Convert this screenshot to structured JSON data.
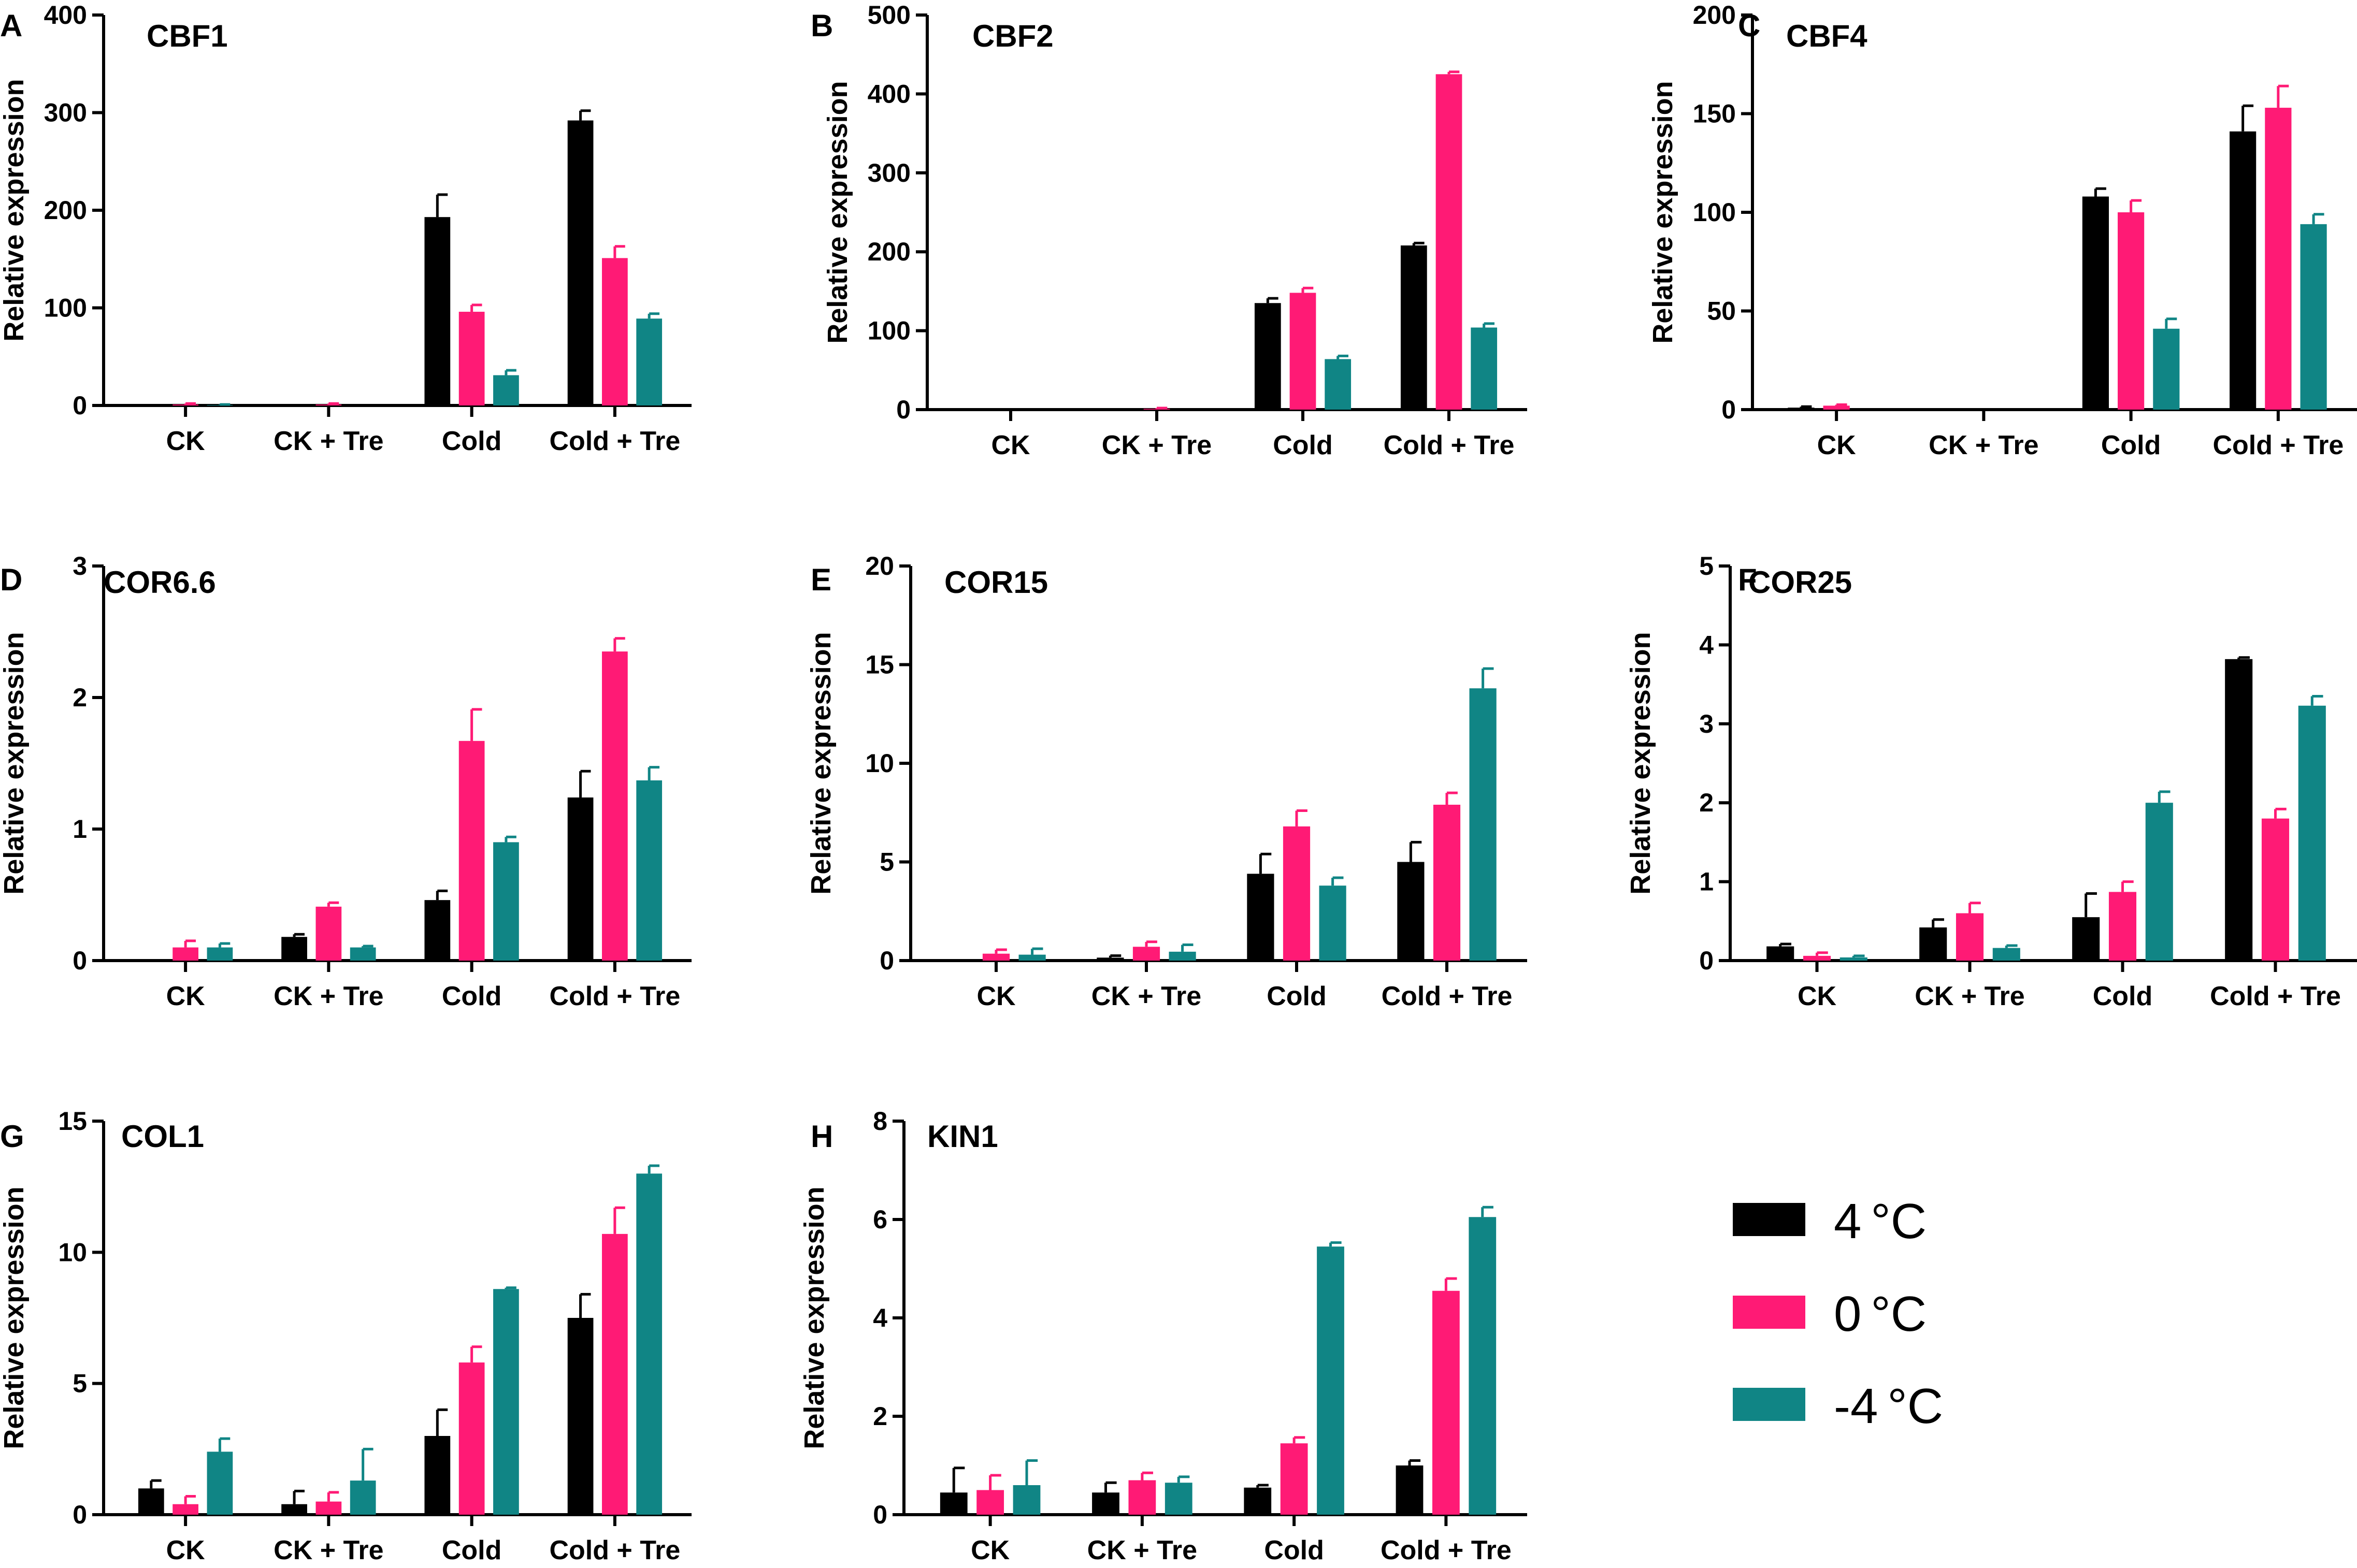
{
  "figure": {
    "series": [
      {
        "name": "4 °C",
        "label_value": "4",
        "label_unit": "°C",
        "color": "#000000"
      },
      {
        "name": "0 °C",
        "label_value": "0",
        "label_unit": "°C",
        "color": "#ff1a75"
      },
      {
        "name": "-4 °C",
        "label_value": "-4",
        "label_unit": "°C",
        "color": "#108585"
      }
    ],
    "categories": [
      "CK",
      "CK + Tre",
      "Cold",
      "Cold + Tre"
    ]
  },
  "chart_data": [
    {
      "panel": "A",
      "type": "bar",
      "title": "CBF1",
      "ylabel": "Relative expression",
      "xlabel": "",
      "categories": [
        "CK",
        "CK + Tre",
        "Cold",
        "Cold + Tre"
      ],
      "ylim": [
        0,
        400
      ],
      "yticks": [
        0,
        100,
        200,
        300,
        400
      ],
      "series": [
        {
          "name": "4 °C",
          "values": [
            0,
            0,
            193,
            292
          ],
          "errors": [
            0,
            0,
            23,
            10
          ]
        },
        {
          "name": "0 °C",
          "values": [
            1,
            1,
            96,
            151
          ],
          "errors": [
            1,
            1,
            7,
            12
          ]
        },
        {
          "name": "-4 °C",
          "values": [
            0.5,
            0,
            31,
            89
          ],
          "errors": [
            0.5,
            0,
            5,
            5
          ]
        }
      ]
    },
    {
      "panel": "B",
      "type": "bar",
      "title": "CBF2",
      "ylabel": "Relative expression",
      "xlabel": "",
      "categories": [
        "CK",
        "CK + Tre",
        "Cold",
        "Cold + Tre"
      ],
      "ylim": [
        0,
        500
      ],
      "yticks": [
        0,
        100,
        200,
        300,
        400,
        500
      ],
      "series": [
        {
          "name": "4 °C",
          "values": [
            0,
            0,
            135,
            208
          ],
          "errors": [
            0,
            0,
            6,
            3
          ]
        },
        {
          "name": "0 °C",
          "values": [
            0,
            1,
            148,
            425
          ],
          "errors": [
            0,
            1,
            6,
            3
          ]
        },
        {
          "name": "-4 °C",
          "values": [
            0,
            0,
            64,
            104
          ],
          "errors": [
            0,
            0,
            4,
            5
          ]
        }
      ]
    },
    {
      "panel": "C",
      "type": "bar",
      "title": "CBF4",
      "ylabel": "Relative expression",
      "xlabel": "",
      "categories": [
        "CK",
        "CK + Tre",
        "Cold",
        "Cold + Tre"
      ],
      "ylim": [
        0,
        200
      ],
      "yticks": [
        0,
        50,
        100,
        150,
        200
      ],
      "series": [
        {
          "name": "4 °C",
          "values": [
            1,
            0,
            108,
            141
          ],
          "errors": [
            0.5,
            0,
            4,
            13
          ]
        },
        {
          "name": "0 °C",
          "values": [
            2,
            0,
            100,
            153
          ],
          "errors": [
            0.5,
            0,
            6,
            11
          ]
        },
        {
          "name": "-4 °C",
          "values": [
            0,
            0,
            41,
            94
          ],
          "errors": [
            0,
            0,
            5,
            5
          ]
        }
      ]
    },
    {
      "panel": "D",
      "type": "bar",
      "title": "COR6.6",
      "ylabel": "Relative expression",
      "xlabel": "",
      "categories": [
        "CK",
        "CK + Tre",
        "Cold",
        "Cold + Tre"
      ],
      "ylim": [
        0,
        3
      ],
      "yticks": [
        0,
        1,
        2,
        3
      ],
      "series": [
        {
          "name": "4 °C",
          "values": [
            0,
            0.18,
            0.46,
            1.24
          ],
          "errors": [
            0,
            0.02,
            0.07,
            0.2
          ]
        },
        {
          "name": "0 °C",
          "values": [
            0.1,
            0.41,
            1.67,
            2.35
          ],
          "errors": [
            0.05,
            0.03,
            0.24,
            0.1
          ]
        },
        {
          "name": "-4 °C",
          "values": [
            0.1,
            0.1,
            0.9,
            1.37
          ],
          "errors": [
            0.03,
            0.01,
            0.04,
            0.1
          ]
        }
      ]
    },
    {
      "panel": "E",
      "type": "bar",
      "title": "COR15",
      "ylabel": "Relative expression",
      "xlabel": "",
      "categories": [
        "CK",
        "CK + Tre",
        "Cold",
        "Cold + Tre"
      ],
      "ylim": [
        0,
        20
      ],
      "yticks": [
        0,
        5,
        10,
        15,
        20
      ],
      "series": [
        {
          "name": "4 °C",
          "values": [
            0,
            0.15,
            4.4,
            5.0
          ],
          "errors": [
            0,
            0.1,
            1.0,
            1.0
          ]
        },
        {
          "name": "0 °C",
          "values": [
            0.35,
            0.7,
            6.8,
            7.9
          ],
          "errors": [
            0.2,
            0.25,
            0.8,
            0.6
          ]
        },
        {
          "name": "-4 °C",
          "values": [
            0.3,
            0.45,
            3.8,
            13.8
          ],
          "errors": [
            0.3,
            0.35,
            0.4,
            1.0
          ]
        }
      ]
    },
    {
      "panel": "F",
      "type": "bar",
      "title": "COR25",
      "ylabel": "Relative expression",
      "xlabel": "",
      "categories": [
        "CK",
        "CK + Tre",
        "Cold",
        "Cold + Tre"
      ],
      "ylim": [
        0,
        5
      ],
      "yticks": [
        0,
        1,
        2,
        3,
        4,
        5
      ],
      "series": [
        {
          "name": "4 °C",
          "values": [
            0.18,
            0.42,
            0.55,
            3.82
          ],
          "errors": [
            0.03,
            0.1,
            0.3,
            0.02
          ]
        },
        {
          "name": "0 °C",
          "values": [
            0.06,
            0.6,
            0.87,
            1.8
          ],
          "errors": [
            0.04,
            0.13,
            0.13,
            0.12
          ]
        },
        {
          "name": "-4 °C",
          "values": [
            0.04,
            0.16,
            2.0,
            3.23
          ],
          "errors": [
            0.02,
            0.03,
            0.14,
            0.12
          ]
        }
      ]
    },
    {
      "panel": "G",
      "type": "bar",
      "title": "COL1",
      "ylabel": "Relative expression",
      "xlabel": "",
      "categories": [
        "CK",
        "CK + Tre",
        "Cold",
        "Cold + Tre"
      ],
      "ylim": [
        0,
        15
      ],
      "yticks": [
        0,
        5,
        10,
        15
      ],
      "series": [
        {
          "name": "4 °C",
          "values": [
            1.0,
            0.4,
            3.0,
            7.5
          ],
          "errors": [
            0.3,
            0.5,
            1.0,
            0.9
          ]
        },
        {
          "name": "0 °C",
          "values": [
            0.4,
            0.5,
            5.8,
            10.7
          ],
          "errors": [
            0.3,
            0.35,
            0.6,
            1.0
          ]
        },
        {
          "name": "-4 °C",
          "values": [
            2.4,
            1.3,
            8.6,
            13.0
          ],
          "errors": [
            0.5,
            1.2,
            0.05,
            0.3
          ]
        }
      ]
    },
    {
      "panel": "H",
      "type": "bar",
      "title": "KIN1",
      "ylabel": "Relative expression",
      "xlabel": "",
      "categories": [
        "CK",
        "CK + Tre",
        "Cold",
        "Cold + Tre"
      ],
      "ylim": [
        0,
        8
      ],
      "yticks": [
        0,
        2,
        4,
        6,
        8
      ],
      "series": [
        {
          "name": "4 °C",
          "values": [
            0.45,
            0.45,
            0.55,
            1.0
          ],
          "errors": [
            0.5,
            0.2,
            0.05,
            0.1
          ]
        },
        {
          "name": "0 °C",
          "values": [
            0.5,
            0.7,
            1.45,
            4.55
          ],
          "errors": [
            0.3,
            0.15,
            0.12,
            0.25
          ]
        },
        {
          "name": "-4 °C",
          "values": [
            0.6,
            0.65,
            5.45,
            6.05
          ],
          "errors": [
            0.5,
            0.12,
            0.08,
            0.2
          ]
        }
      ]
    }
  ]
}
